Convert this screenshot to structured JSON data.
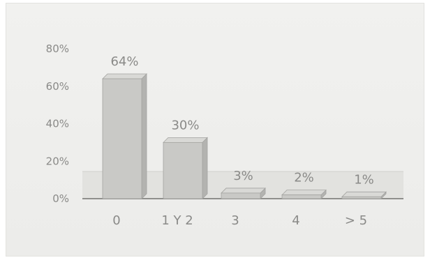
{
  "chart_data": {
    "type": "bar",
    "title": "",
    "xlabel": "",
    "ylabel": "",
    "categories": [
      "0",
      "1 Y 2",
      "3",
      "4",
      "> 5"
    ],
    "values": [
      64,
      30,
      3,
      2,
      1
    ],
    "data_labels": [
      "64%",
      "30%",
      "3%",
      "2%",
      "1%"
    ],
    "y_ticks": [
      0,
      20,
      40,
      60,
      80
    ],
    "y_tick_labels": [
      "0%",
      "20%",
      "40%",
      "60%",
      "80%"
    ],
    "ylim": [
      0,
      80
    ],
    "grid": false,
    "legend": "none",
    "bar_color": "#c9c9c6",
    "bar_side_color": "#b3b3b0",
    "bar_top_color": "#d9d9d6",
    "floor_color": "#dededb",
    "text_color": "#8a8a88"
  }
}
